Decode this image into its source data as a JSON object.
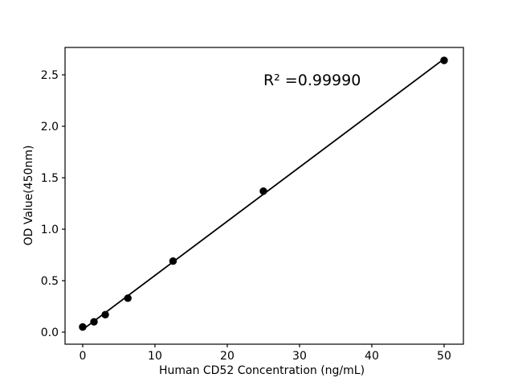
{
  "figure": {
    "background": "#ffffff"
  },
  "chart_data": {
    "type": "scatter",
    "title": "",
    "xlabel": "Human CD52 Concentration (ng/mL)",
    "ylabel": "OD Value(450nm)",
    "x": [
      0,
      1.5625,
      3.125,
      6.25,
      12.5,
      25,
      50
    ],
    "y": [
      0.05,
      0.1,
      0.17,
      0.33,
      0.69,
      1.37,
      2.64
    ],
    "fit_line": {
      "slope": 0.0526,
      "intercept": 0.025,
      "x_start": 0,
      "x_end": 50
    },
    "annotation": {
      "text": "R² =0.99990",
      "x": 25,
      "y": 2.4
    },
    "xlim": [
      -2.44,
      52.67
    ],
    "ylim": [
      -0.117,
      2.766
    ],
    "x_ticks": {
      "values": [
        0,
        10,
        20,
        30,
        40,
        50
      ],
      "labels": [
        "0",
        "10",
        "20",
        "30",
        "40",
        "50"
      ]
    },
    "y_ticks": {
      "values": [
        0,
        0.5,
        1,
        1.5,
        2,
        2.5
      ],
      "labels": [
        "0.0",
        "0.5",
        "1.0",
        "1.5",
        "2.0",
        "2.5"
      ]
    },
    "grid": false,
    "legend_position": "none",
    "marker_color": "#000000",
    "line_color": "#000000",
    "axis_color": "#000000",
    "text_color": "#000000"
  }
}
